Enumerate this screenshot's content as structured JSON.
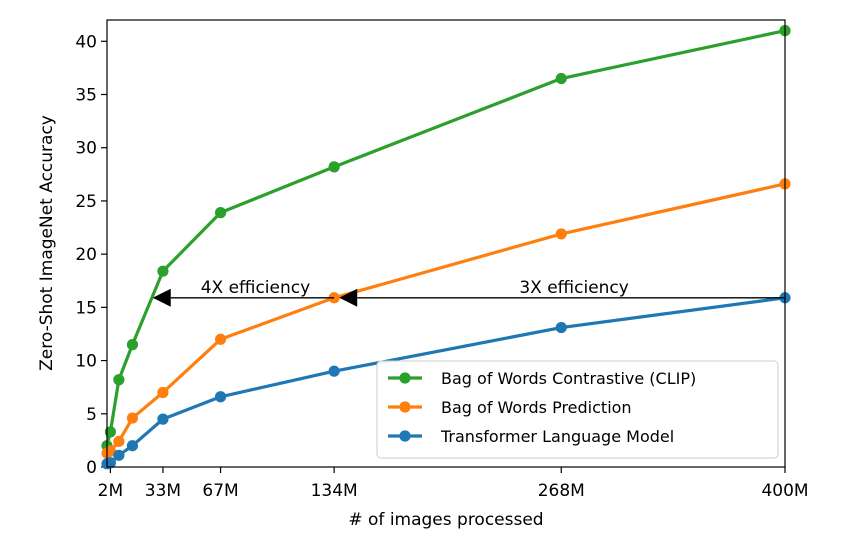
{
  "chart_data": {
    "type": "line",
    "xlabel": "# of images processed",
    "ylabel": "Zero-Shot ImageNet Accuracy",
    "xlim": [
      0,
      400
    ],
    "ylim": [
      0,
      42
    ],
    "x_ticks": [
      {
        "value": 2,
        "label": "2M"
      },
      {
        "value": 33,
        "label": "33M"
      },
      {
        "value": 67,
        "label": "67M"
      },
      {
        "value": 134,
        "label": "134M"
      },
      {
        "value": 268,
        "label": "268M"
      },
      {
        "value": 400,
        "label": "400M"
      }
    ],
    "y_ticks": [
      0,
      5,
      10,
      15,
      20,
      25,
      30,
      35,
      40
    ],
    "grid": false,
    "legend_position": "lower-right",
    "series": [
      {
        "name": "Bag of Words Contrastive (CLIP)",
        "color": "#2ca02c",
        "x": [
          0,
          2,
          7,
          15,
          33,
          67,
          134,
          268,
          400
        ],
        "y": [
          2.0,
          3.3,
          8.2,
          11.5,
          18.4,
          23.9,
          28.2,
          36.5,
          41.0
        ]
      },
      {
        "name": "Bag of Words Prediction",
        "color": "#ff7f0e",
        "x": [
          0,
          2,
          7,
          15,
          33,
          67,
          134,
          268,
          400
        ],
        "y": [
          1.3,
          1.5,
          2.4,
          4.6,
          7.0,
          12.0,
          15.9,
          21.9,
          26.6
        ]
      },
      {
        "name": "Transformer Language Model",
        "color": "#1f77b4",
        "x": [
          0,
          2,
          7,
          15,
          33,
          67,
          134,
          268,
          400
        ],
        "y": [
          0.3,
          0.4,
          1.1,
          2.0,
          4.5,
          6.6,
          9.0,
          13.1,
          15.9
        ]
      }
    ],
    "annotations": [
      {
        "text": "4X efficiency",
        "x_from": 134,
        "x_to": 27,
        "y": 15.9
      },
      {
        "text": "3X efficiency",
        "x_from": 400,
        "x_to": 137,
        "y": 15.9
      }
    ]
  }
}
